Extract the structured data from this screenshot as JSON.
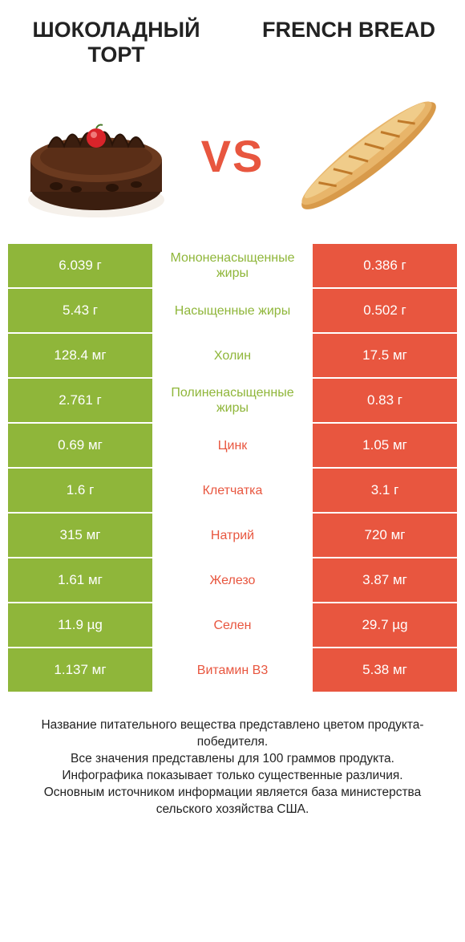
{
  "colors": {
    "green": "#8fb63a",
    "orange": "#e8563f",
    "white": "#ffffff",
    "text": "#222222"
  },
  "header": {
    "left": "ШОКОЛАДНЫЙ ТОРТ",
    "right": "FRENCH BREAD",
    "vs": "VS"
  },
  "rows": [
    {
      "left": "6.039 г",
      "mid": "Мононенасыщенные жиры",
      "right": "0.386 г",
      "winner": "left"
    },
    {
      "left": "5.43 г",
      "mid": "Насыщенные жиры",
      "right": "0.502 г",
      "winner": "left"
    },
    {
      "left": "128.4 мг",
      "mid": "Холин",
      "right": "17.5 мг",
      "winner": "left"
    },
    {
      "left": "2.761 г",
      "mid": "Полиненасыщенные жиры",
      "right": "0.83 г",
      "winner": "left"
    },
    {
      "left": "0.69 мг",
      "mid": "Цинк",
      "right": "1.05 мг",
      "winner": "right"
    },
    {
      "left": "1.6 г",
      "mid": "Клетчатка",
      "right": "3.1 г",
      "winner": "right"
    },
    {
      "left": "315 мг",
      "mid": "Натрий",
      "right": "720 мг",
      "winner": "right"
    },
    {
      "left": "1.61 мг",
      "mid": "Железо",
      "right": "3.87 мг",
      "winner": "right"
    },
    {
      "left": "11.9 µg",
      "mid": "Селен",
      "right": "29.7 µg",
      "winner": "right"
    },
    {
      "left": "1.137 мг",
      "mid": "Витамин B3",
      "right": "5.38 мг",
      "winner": "right"
    }
  ],
  "footer": {
    "line1": "Название питательного вещества представлено цветом продукта-победителя.",
    "line2": "Все значения представлены для 100 граммов продукта.",
    "line3": "Инфографика показывает только существенные различия.",
    "line4": "Основным источником информации является база министерства сельского хозяйства США."
  }
}
